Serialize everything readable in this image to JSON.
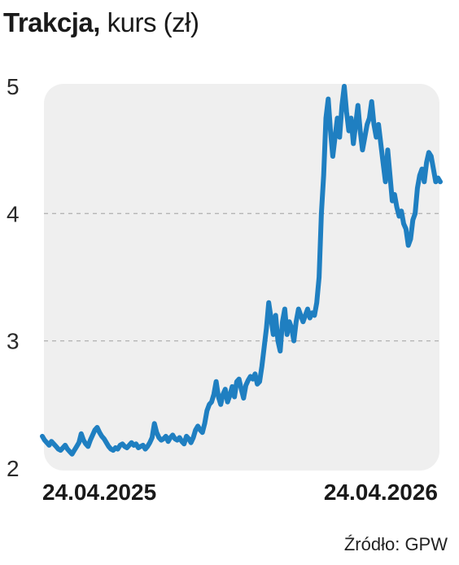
{
  "header": {
    "title_bold": "Trakcja,",
    "title_rest": " kurs (zł)"
  },
  "footer": {
    "source": "Źródło: GPW"
  },
  "chart_data": {
    "type": "line",
    "title": "Trakcja, kurs (zł)",
    "xlabel": "",
    "ylabel": "",
    "ylim": [
      2,
      5
    ],
    "yticks": [
      2,
      3,
      4,
      5
    ],
    "x_tick_labels": [
      "24.04.2025",
      "24.04.2026"
    ],
    "grid": "horizontal-dashed",
    "line_color": "#1f7fc1",
    "plot_background": "#efefef",
    "series": [
      {
        "values": [
          2.25,
          2.22,
          2.2,
          2.18,
          2.21,
          2.19,
          2.17,
          2.15,
          2.14,
          2.16,
          2.18,
          2.15,
          2.13,
          2.11,
          2.14,
          2.17,
          2.2,
          2.27,
          2.22,
          2.19,
          2.17,
          2.22,
          2.26,
          2.3,
          2.32,
          2.28,
          2.25,
          2.23,
          2.2,
          2.17,
          2.15,
          2.14,
          2.16,
          2.15,
          2.18,
          2.19,
          2.17,
          2.16,
          2.18,
          2.2,
          2.18,
          2.19,
          2.16,
          2.17,
          2.18,
          2.15,
          2.17,
          2.2,
          2.24,
          2.35,
          2.28,
          2.24,
          2.22,
          2.23,
          2.25,
          2.21,
          2.24,
          2.26,
          2.23,
          2.22,
          2.24,
          2.21,
          2.19,
          2.25,
          2.23,
          2.2,
          2.24,
          2.3,
          2.33,
          2.3,
          2.28,
          2.35,
          2.45,
          2.5,
          2.52,
          2.58,
          2.68,
          2.56,
          2.5,
          2.58,
          2.62,
          2.52,
          2.57,
          2.64,
          2.56,
          2.68,
          2.7,
          2.62,
          2.55,
          2.65,
          2.69,
          2.72,
          2.7,
          2.74,
          2.66,
          2.68,
          2.8,
          2.95,
          3.1,
          3.3,
          3.18,
          3.05,
          3.2,
          3.0,
          2.92,
          3.15,
          3.25,
          3.05,
          3.15,
          3.1,
          3.0,
          3.15,
          3.25,
          3.2,
          3.15,
          3.2,
          3.25,
          3.18,
          3.22,
          3.2,
          3.3,
          3.5,
          4.0,
          4.3,
          4.75,
          4.9,
          4.65,
          4.45,
          4.6,
          4.75,
          4.6,
          4.85,
          5.0,
          4.8,
          4.65,
          4.75,
          4.55,
          4.7,
          4.85,
          4.65,
          4.5,
          4.6,
          4.7,
          4.75,
          4.88,
          4.7,
          4.6,
          4.7,
          4.55,
          4.4,
          4.25,
          4.5,
          4.3,
          4.1,
          4.15,
          4.05,
          3.98,
          4.02,
          3.92,
          3.88,
          3.75,
          3.8,
          3.95,
          4.0,
          4.2,
          4.3,
          4.35,
          4.25,
          4.4,
          4.48,
          4.45,
          4.35,
          4.25,
          4.28,
          4.25
        ]
      }
    ]
  }
}
